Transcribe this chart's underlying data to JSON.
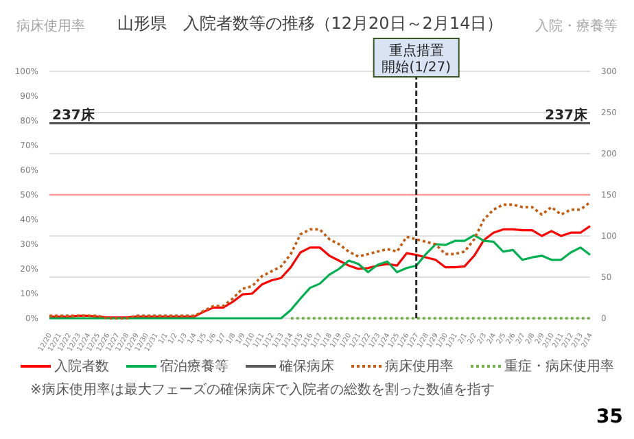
{
  "chart_data": {
    "type": "line",
    "title": "山形県　入院者数等の推移（12月20日～2月14日）",
    "ylabel": "病床使用率",
    "y2label": "入院・療養等",
    "categories": [
      "12/20",
      "12/21",
      "12/22",
      "12/23",
      "12/24",
      "12/25",
      "12/26",
      "12/27",
      "12/28",
      "12/29",
      "12/30",
      "12/31",
      "1/1",
      "1/2",
      "1/3",
      "1/4",
      "1/5",
      "1/6",
      "1/7",
      "1/8",
      "1/9",
      "1/10",
      "1/11",
      "1/12",
      "1/13",
      "1/14",
      "1/15",
      "1/16",
      "1/17",
      "1/18",
      "1/19",
      "1/20",
      "1/21",
      "1/22",
      "1/23",
      "1/24",
      "1/25",
      "1/26",
      "1/27",
      "1/28",
      "1/29",
      "1/30",
      "1/31",
      "2/1",
      "2/2",
      "2/3",
      "2/4",
      "2/5",
      "2/6",
      "2/7",
      "2/8",
      "2/9",
      "2/10",
      "2/11",
      "2/12",
      "2/13",
      "2/14"
    ],
    "series": [
      {
        "name": "入院者数",
        "color": "#ff0000",
        "axis": "y2",
        "values": [
          2,
          2,
          2,
          3,
          3,
          2,
          1,
          1,
          1,
          2,
          2,
          2,
          2,
          2,
          2,
          2,
          8,
          13,
          13,
          20,
          29,
          30,
          41,
          46,
          49,
          62,
          80,
          86,
          86,
          76,
          70,
          64,
          60,
          61,
          64,
          66,
          64,
          79,
          77,
          74,
          71,
          62,
          62,
          63,
          76,
          95,
          104,
          108,
          108,
          107,
          107,
          100,
          106,
          100,
          104,
          104,
          112
        ]
      },
      {
        "name": "宿泊療養等",
        "color": "#00b050",
        "axis": "y2",
        "values": [
          0,
          0,
          0,
          0,
          0,
          0,
          0,
          0,
          0,
          0,
          0,
          0,
          0,
          0,
          0,
          0,
          0,
          0,
          0,
          0,
          0,
          0,
          0,
          0,
          0,
          10,
          24,
          37,
          42,
          53,
          60,
          70,
          66,
          56,
          65,
          69,
          56,
          61,
          64,
          78,
          90,
          89,
          94,
          94,
          101,
          94,
          93,
          81,
          83,
          71,
          74,
          76,
          71,
          71,
          80,
          86,
          77
        ]
      },
      {
        "name": "確保病床",
        "color": "#595959",
        "axis": "y2",
        "values": [
          237,
          237,
          237,
          237,
          237,
          237,
          237,
          237,
          237,
          237,
          237,
          237,
          237,
          237,
          237,
          237,
          237,
          237,
          237,
          237,
          237,
          237,
          237,
          237,
          237,
          237,
          237,
          237,
          237,
          237,
          237,
          237,
          237,
          237,
          237,
          237,
          237,
          237,
          237,
          237,
          237,
          237,
          237,
          237,
          237,
          237,
          237,
          237,
          237,
          237,
          237,
          237,
          237,
          237,
          237,
          237,
          237
        ],
        "value_labels": [
          "237床",
          null,
          null,
          null,
          null,
          null,
          null,
          null,
          null,
          null,
          null,
          null,
          null,
          null,
          null,
          null,
          null,
          null,
          null,
          null,
          null,
          null,
          null,
          null,
          null,
          null,
          null,
          null,
          null,
          null,
          null,
          null,
          null,
          null,
          null,
          null,
          null,
          null,
          null,
          null,
          null,
          null,
          null,
          null,
          null,
          null,
          null,
          null,
          null,
          null,
          null,
          null,
          null,
          null,
          null,
          null,
          "237床"
        ]
      },
      {
        "name": "病床使用率",
        "color": "#c55a11",
        "line_style": "dotted",
        "values": [
          1,
          1,
          1,
          1,
          1,
          1,
          0,
          0,
          0,
          1,
          1,
          1,
          1,
          1,
          1,
          1,
          3,
          5,
          5,
          8,
          12,
          13,
          17,
          19,
          21,
          26,
          34,
          36,
          36,
          32,
          30,
          27,
          25,
          26,
          27,
          28,
          27,
          33,
          32,
          31,
          30,
          26,
          26,
          27,
          32,
          40,
          44,
          46,
          46,
          45,
          45,
          42,
          45,
          42,
          44,
          44,
          47
        ]
      },
      {
        "name": "重症・病床使用率",
        "color": "#70ad47",
        "line_style": "dotted",
        "values": [
          null,
          null,
          null,
          null,
          null,
          null,
          null,
          null,
          null,
          null,
          null,
          null,
          null,
          null,
          null,
          null,
          null,
          null,
          null,
          null,
          null,
          null,
          null,
          null,
          null,
          0,
          0,
          0,
          0,
          0,
          0,
          0,
          0,
          0,
          0,
          0,
          0,
          0,
          0,
          0,
          0,
          0,
          0,
          0,
          0,
          0,
          0,
          0,
          0,
          0,
          0,
          0,
          0,
          0,
          0,
          0,
          0
        ]
      }
    ],
    "ylim": [
      0,
      100
    ],
    "yticks": [
      {
        "value": 0,
        "label": "0%"
      },
      {
        "value": 10,
        "label": "10%"
      },
      {
        "value": 20,
        "label": "20%"
      },
      {
        "value": 30,
        "label": "30%"
      },
      {
        "value": 40,
        "label": "40%"
      },
      {
        "value": 50,
        "label": "50%"
      },
      {
        "value": 60,
        "label": "60%"
      },
      {
        "value": 70,
        "label": "70%"
      },
      {
        "value": 80,
        "label": "80%"
      },
      {
        "value": 90,
        "label": "90%"
      },
      {
        "value": 100,
        "label": "100%"
      }
    ],
    "y2lim": [
      0,
      300
    ],
    "y2ticks": [
      0,
      50,
      100,
      150,
      200,
      250,
      300
    ],
    "ref_lines": [
      {
        "axis": "x",
        "value": "1/27",
        "label": "重点措置開始(1/27)",
        "color": "#262626",
        "line_style": "dashed"
      },
      {
        "axis": "y",
        "value": 50,
        "color": "#ff9999"
      }
    ],
    "grid": "y",
    "legend": "bottom",
    "marker": "none",
    "annotations": [
      "※病床使用率は最大フェーズの確保病床で入院者の総数を割った数値を指す",
      "35"
    ]
  }
}
